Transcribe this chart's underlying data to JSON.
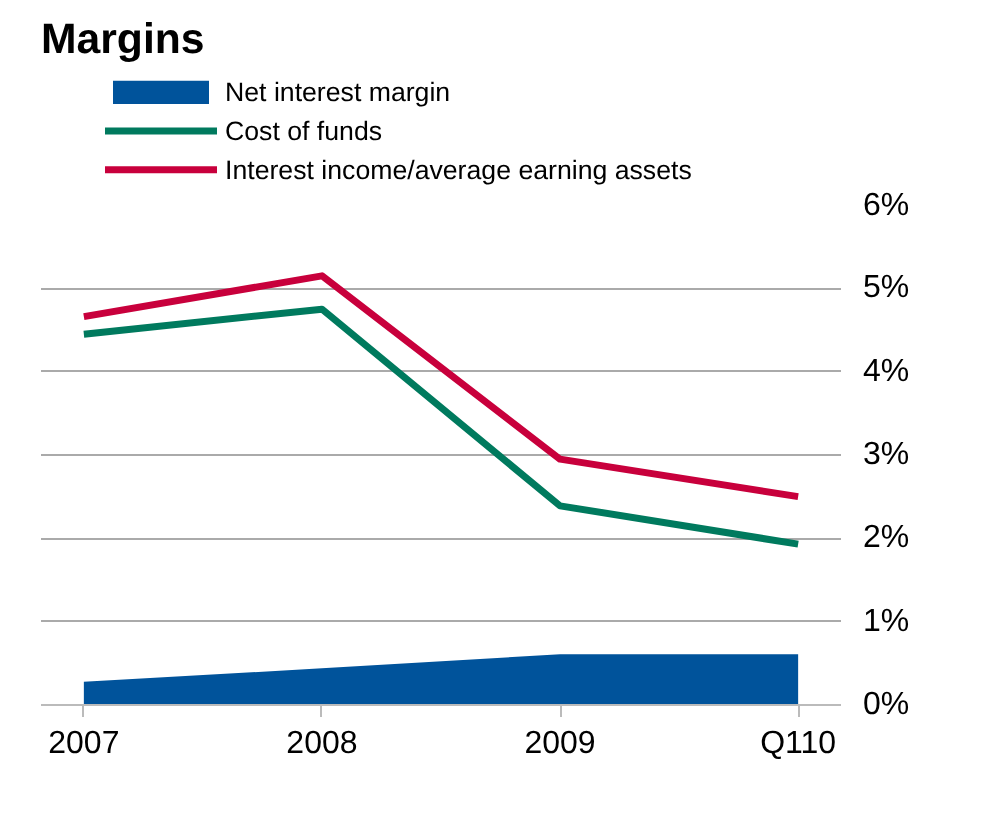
{
  "chart_data": {
    "type": "line",
    "title": "Margins",
    "categories": [
      "2007",
      "2008",
      "2009",
      "Q110"
    ],
    "series": [
      {
        "name": "Net interest margin",
        "type": "area",
        "color": "#00539b",
        "values": [
          0.28,
          0.44,
          0.61,
          0.61
        ]
      },
      {
        "name": "Cost of funds",
        "color": "#007a5e",
        "values": [
          4.45,
          4.75,
          2.39,
          1.93
        ]
      },
      {
        "name": "Interest income/average earning assets",
        "color": "#c8003c",
        "values": [
          4.66,
          5.15,
          2.95,
          2.5
        ]
      }
    ],
    "ylim": [
      0,
      6
    ],
    "yticks": [
      {
        "value": 0,
        "label": "0%"
      },
      {
        "value": 1,
        "label": "1%"
      },
      {
        "value": 2,
        "label": "2%"
      },
      {
        "value": 3,
        "label": "3%"
      },
      {
        "value": 4,
        "label": "4%"
      },
      {
        "value": 5,
        "label": "5%"
      },
      {
        "value": 6,
        "label": "6%"
      }
    ],
    "grid": "y",
    "legend": "top left",
    "line_style": "solid"
  }
}
